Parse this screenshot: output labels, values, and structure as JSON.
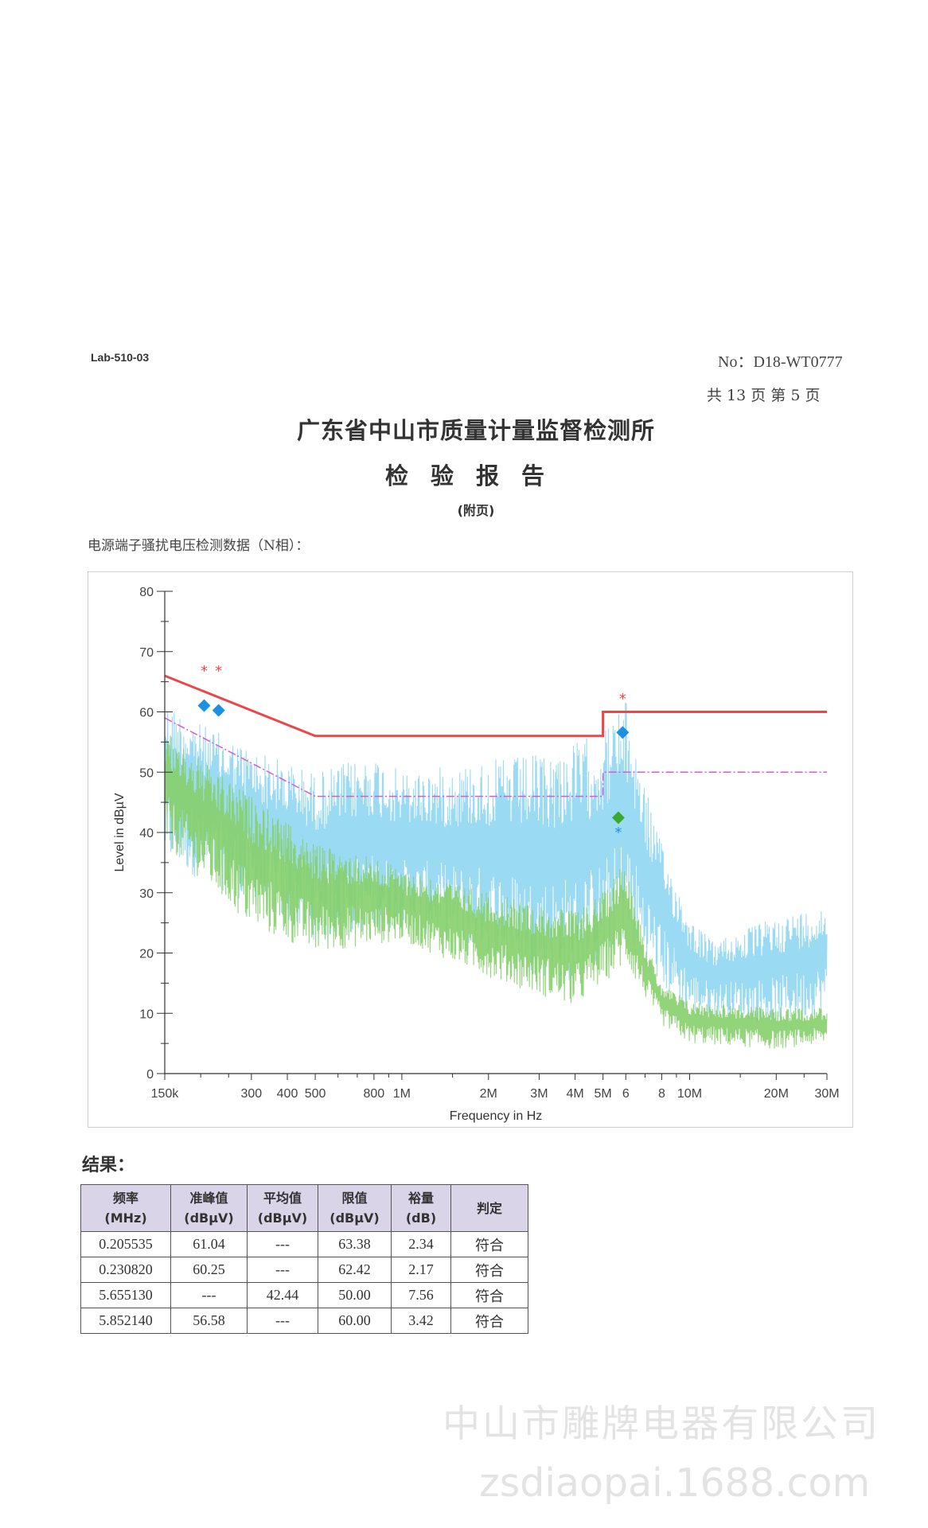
{
  "header": {
    "form_code": "Lab-510-03",
    "report_no": "No：D18-WT0777",
    "page_info": "共 13 页   第 5 页",
    "org_title": "广东省中山市质量计量监督检测所",
    "report_title": "检验报告",
    "appendix": "(附页)"
  },
  "section_title": "电源端子骚扰电压检测数据（N相）：",
  "colors": {
    "limit_qp": "#e8484a",
    "limit_av": "#d85ad0",
    "trace_peak": "#8fd6f2",
    "trace_avg": "#86cf6a",
    "marker_qp": "#1e90e0",
    "marker_avg": "#3aaa2e",
    "marker_peak_star": "#e8484a"
  },
  "chart_data": {
    "type": "line",
    "xlabel": "Frequency in Hz",
    "ylabel": "Level in dBµV",
    "x_scale": "log",
    "xlim": [
      150000,
      30000000
    ],
    "ylim": [
      0,
      80
    ],
    "yticks": [
      "0",
      "10",
      "20",
      "30",
      "40",
      "50",
      "60",
      "70",
      "80"
    ],
    "xticks": [
      {
        "f": 150000,
        "label": "150k"
      },
      {
        "f": 300000,
        "label": "300"
      },
      {
        "f": 400000,
        "label": "400"
      },
      {
        "f": 500000,
        "label": "500"
      },
      {
        "f": 800000,
        "label": "800"
      },
      {
        "f": 1000000,
        "label": "1M"
      },
      {
        "f": 2000000,
        "label": "2M"
      },
      {
        "f": 3000000,
        "label": "3M"
      },
      {
        "f": 4000000,
        "label": "4M"
      },
      {
        "f": 5000000,
        "label": "5M"
      },
      {
        "f": 6000000,
        "label": "6"
      },
      {
        "f": 8000000,
        "label": "8"
      },
      {
        "f": 10000000,
        "label": "10M"
      },
      {
        "f": 20000000,
        "label": "20M"
      },
      {
        "f": 30000000,
        "label": "30M"
      }
    ],
    "limit_lines": [
      {
        "points": [
          [
            150000,
            66
          ],
          [
            500000,
            56
          ],
          [
            5000000,
            56
          ],
          [
            5000000,
            60
          ],
          [
            30000000,
            60
          ]
        ]
      },
      {
        "points": [
          [
            150000,
            59
          ],
          [
            500000,
            46
          ],
          [
            5000000,
            46
          ],
          [
            5000000,
            50
          ],
          [
            30000000,
            50
          ]
        ]
      }
    ],
    "peak_envelope": [
      [
        150000,
        62
      ],
      [
        200000,
        58
      ],
      [
        300000,
        54
      ],
      [
        500000,
        50
      ],
      [
        800000,
        53
      ],
      [
        1000000,
        50
      ],
      [
        2000000,
        52
      ],
      [
        3000000,
        53
      ],
      [
        4000000,
        55
      ],
      [
        5000000,
        57
      ],
      [
        6000000,
        62
      ],
      [
        7000000,
        48
      ],
      [
        8000000,
        38
      ],
      [
        10000000,
        26
      ],
      [
        12000000,
        22
      ],
      [
        20000000,
        26
      ],
      [
        30000000,
        28
      ]
    ],
    "peak_floor": [
      [
        150000,
        35
      ],
      [
        300000,
        28
      ],
      [
        500000,
        22
      ],
      [
        1000000,
        24
      ],
      [
        2000000,
        20
      ],
      [
        3000000,
        16
      ],
      [
        4000000,
        15
      ],
      [
        5000000,
        18
      ],
      [
        6000000,
        22
      ],
      [
        8000000,
        14
      ],
      [
        10000000,
        10
      ],
      [
        20000000,
        8
      ],
      [
        30000000,
        10
      ]
    ],
    "avg_envelope": [
      [
        150000,
        57
      ],
      [
        200000,
        52
      ],
      [
        300000,
        46
      ],
      [
        500000,
        38
      ],
      [
        800000,
        36
      ],
      [
        1000000,
        34
      ],
      [
        2000000,
        30
      ],
      [
        3000000,
        28
      ],
      [
        4000000,
        27
      ],
      [
        5000000,
        30
      ],
      [
        6000000,
        36
      ],
      [
        7000000,
        22
      ],
      [
        8000000,
        15
      ],
      [
        10000000,
        12
      ],
      [
        20000000,
        11
      ],
      [
        30000000,
        11
      ]
    ],
    "avg_floor": [
      [
        150000,
        38
      ],
      [
        300000,
        24
      ],
      [
        500000,
        20
      ],
      [
        1000000,
        22
      ],
      [
        2000000,
        16
      ],
      [
        3000000,
        13
      ],
      [
        4000000,
        11
      ],
      [
        5000000,
        15
      ],
      [
        6000000,
        18
      ],
      [
        8000000,
        8
      ],
      [
        10000000,
        5
      ],
      [
        20000000,
        4
      ],
      [
        30000000,
        5
      ]
    ],
    "markers": [
      {
        "kind": "star",
        "f": 205535,
        "v": 66.8,
        "series": "peak"
      },
      {
        "kind": "star",
        "f": 230820,
        "v": 66.8,
        "series": "peak"
      },
      {
        "kind": "star",
        "f": 5852140,
        "v": 62.2,
        "series": "peak"
      },
      {
        "kind": "diamond",
        "f": 205535,
        "v": 61.04,
        "series": "qp"
      },
      {
        "kind": "diamond",
        "f": 230820,
        "v": 60.25,
        "series": "qp"
      },
      {
        "kind": "diamond",
        "f": 5852140,
        "v": 56.58,
        "series": "qp"
      },
      {
        "kind": "diamond",
        "f": 5655130,
        "v": 42.44,
        "series": "avg"
      },
      {
        "kind": "star",
        "f": 5655130,
        "v": 40.0,
        "series": "qp"
      }
    ]
  },
  "results": {
    "label": "结果：",
    "headers": [
      {
        "l1": "频率",
        "l2": "(MHz)"
      },
      {
        "l1": "准峰值",
        "l2": "(dBµV)"
      },
      {
        "l1": "平均值",
        "l2": "(dBµV)"
      },
      {
        "l1": "限值",
        "l2": "(dBµV)"
      },
      {
        "l1": "裕量",
        "l2": "(dB)"
      },
      {
        "l1": "判定",
        "l2": ""
      }
    ],
    "rows": [
      [
        "0.205535",
        "61.04",
        "---",
        "63.38",
        "2.34",
        "符合"
      ],
      [
        "0.230820",
        "60.25",
        "---",
        "62.42",
        "2.17",
        "符合"
      ],
      [
        "5.655130",
        "---",
        "42.44",
        "50.00",
        "7.56",
        "符合"
      ],
      [
        "5.852140",
        "56.58",
        "---",
        "60.00",
        "3.42",
        "符合"
      ]
    ]
  },
  "watermark": {
    "company": "中山市雕牌电器有限公司",
    "url": "zsdiaopai.1688.com"
  }
}
